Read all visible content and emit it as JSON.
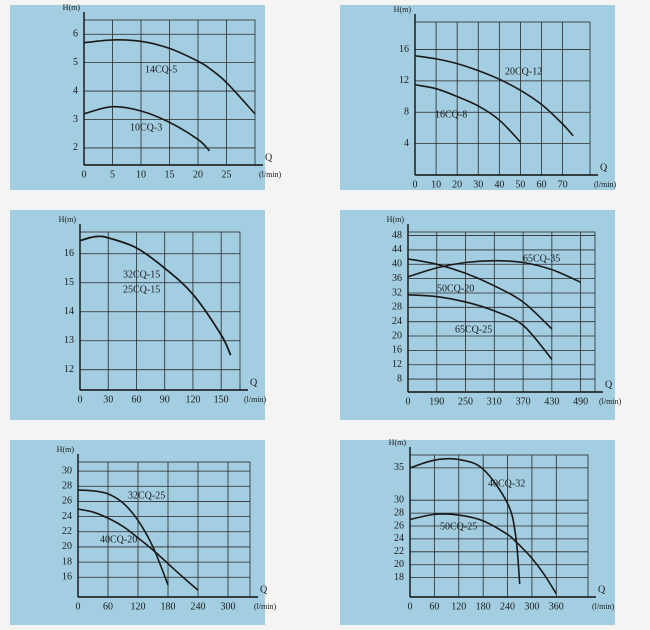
{
  "chart_data": [
    {
      "type": "line",
      "y_label": "H(m)",
      "x_label": "Q",
      "x_unit": "(l/min)",
      "x": [
        0,
        5,
        10,
        15,
        20,
        22,
        25,
        30
      ],
      "xlim": [
        0,
        30
      ],
      "xticks": [
        0,
        5,
        10,
        15,
        20,
        25
      ],
      "ylim": [
        1.4,
        6.5
      ],
      "yticks": [
        2,
        3,
        4,
        5,
        6
      ],
      "grid": true,
      "series": [
        {
          "name": "14CQ-5",
          "color": "#1a1a1a",
          "values": [
            5.7,
            5.8,
            5.75,
            5.5,
            5.05,
            4.8,
            4.3,
            3.2
          ]
        },
        {
          "name": "10CQ-3",
          "color": "#1a1a1a",
          "values": [
            3.2,
            3.45,
            3.3,
            2.9,
            2.3,
            1.9,
            null,
            null
          ]
        }
      ]
    },
    {
      "type": "line",
      "y_label": "H(m)",
      "x_label": "Q",
      "x_unit": "(l/min)",
      "x": [
        0,
        10,
        20,
        30,
        40,
        50,
        60,
        70,
        75
      ],
      "xlim": [
        0,
        83
      ],
      "xticks": [
        0,
        10,
        20,
        30,
        40,
        50,
        60,
        70
      ],
      "ylim": [
        0,
        19.5
      ],
      "yticks": [
        4,
        8,
        12,
        16
      ],
      "grid": true,
      "series": [
        {
          "name": "20CQ-12",
          "color": "#1a1a1a",
          "values": [
            15.2,
            14.8,
            14.2,
            13.3,
            12.2,
            10.8,
            9,
            6.5,
            5
          ]
        },
        {
          "name": "16CQ-8",
          "color": "#1a1a1a",
          "values": [
            11.5,
            11,
            10,
            8.8,
            7,
            4.2,
            null,
            null,
            null
          ]
        }
      ]
    },
    {
      "type": "line",
      "y_label": "H(m)",
      "x_label": "Q",
      "x_unit": "(l/min)",
      "x": [
        0,
        10,
        20,
        30,
        60,
        90,
        120,
        150,
        160
      ],
      "xlim": [
        0,
        170
      ],
      "xticks": [
        0,
        30,
        60,
        90,
        120,
        150
      ],
      "ylim": [
        11.3,
        16.75
      ],
      "yticks": [
        12,
        13,
        14,
        15,
        16
      ],
      "grid": true,
      "series": [
        {
          "name": "32CQ-15",
          "color": "#1a1a1a",
          "values": [
            16.45,
            16.55,
            16.6,
            16.55,
            16.2,
            15.5,
            14.6,
            13.2,
            12.5
          ]
        },
        {
          "name": "25CQ-15",
          "color": "#1a1a1a",
          "values": [
            16.45,
            16.55,
            16.6,
            16.55,
            16.2,
            15.5,
            14.6,
            13.2,
            12.5
          ]
        }
      ]
    },
    {
      "type": "line",
      "y_label": "H(m)",
      "x_label": "Q",
      "x_unit": "(l/min)",
      "categories": [
        "0",
        "190",
        "250",
        "310",
        "370",
        "430",
        "490"
      ],
      "ylim": [
        4.4,
        49
      ],
      "yticks": [
        8,
        12,
        16,
        20,
        24,
        28,
        32,
        36,
        40,
        44,
        48
      ],
      "grid": true,
      "series": [
        {
          "name": "65CQ-35",
          "color": "#1a1a1a",
          "values": [
            36.5,
            39,
            40.5,
            41,
            40.5,
            38.5,
            35
          ]
        },
        {
          "name": "50CQ-20",
          "color": "#1a1a1a",
          "values": [
            41.5,
            40,
            37.5,
            34,
            29.5,
            22,
            null
          ]
        },
        {
          "name": "65CQ-25",
          "color": "#1a1a1a",
          "values": [
            31.5,
            31,
            29.5,
            27,
            23,
            13.5,
            null
          ]
        }
      ]
    },
    {
      "type": "line",
      "y_label": "H(m)",
      "x_label": "Q",
      "x_unit": "(l/min)",
      "x": [
        0,
        30,
        60,
        90,
        120,
        150,
        180,
        210,
        240
      ],
      "xlim": [
        0,
        344
      ],
      "xticks": [
        0,
        60,
        120,
        180,
        240,
        300
      ],
      "ylim": [
        13.4,
        31.2
      ],
      "yticks": [
        16,
        18,
        20,
        22,
        24,
        26,
        28,
        30
      ],
      "grid": true,
      "series": [
        {
          "name": "32CQ-25",
          "color": "#1a1a1a",
          "values": [
            27.5,
            27.4,
            27,
            25.8,
            23.5,
            20,
            15,
            null,
            null
          ]
        },
        {
          "name": "40CQ-20",
          "color": "#1a1a1a",
          "values": [
            25,
            24.6,
            23.8,
            22.7,
            21.2,
            19.6,
            17.8,
            16,
            14.3
          ]
        }
      ]
    },
    {
      "type": "line",
      "y_label": "H(m)",
      "x_label": "Q",
      "x_unit": "(l/min)",
      "x": [
        0,
        60,
        120,
        180,
        240,
        260,
        270,
        300,
        330,
        360
      ],
      "xlim": [
        0,
        438
      ],
      "xticks": [
        0,
        60,
        120,
        180,
        240,
        300,
        360
      ],
      "ylim": [
        15,
        37
      ],
      "yticks": [
        18,
        20,
        22,
        24,
        26,
        28,
        30,
        35
      ],
      "grid": true,
      "series": [
        {
          "name": "40CQ-32",
          "color": "#1a1a1a",
          "values": [
            35,
            36.2,
            36.3,
            34.8,
            29.5,
            24.5,
            17,
            null,
            null,
            null
          ]
        },
        {
          "name": "50CQ-25",
          "color": "#1a1a1a",
          "values": [
            27,
            27.8,
            27.7,
            26.8,
            24.7,
            23.6,
            23,
            21,
            18.5,
            15.5
          ]
        }
      ]
    }
  ]
}
